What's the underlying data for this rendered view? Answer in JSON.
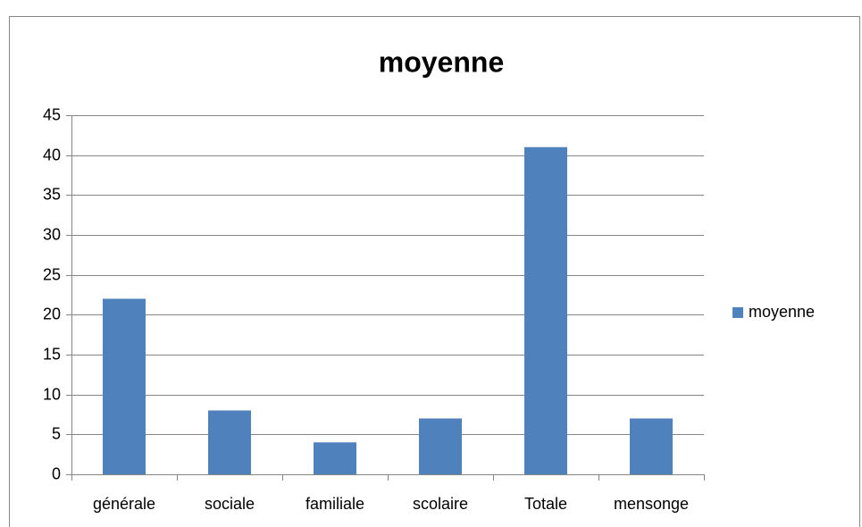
{
  "chart_data": {
    "type": "bar",
    "title": "moyenne",
    "categories": [
      "générale",
      "sociale",
      "familiale",
      "scolaire",
      "Totale",
      "mensonge"
    ],
    "series": [
      {
        "name": "moyenne",
        "color": "#4f81bd",
        "values": [
          22,
          8,
          4,
          7,
          41,
          7
        ]
      }
    ],
    "ylim": [
      0,
      45
    ],
    "yticks": [
      0,
      5,
      10,
      15,
      20,
      25,
      30,
      35,
      40,
      45
    ],
    "grid": true,
    "legend": "right"
  }
}
